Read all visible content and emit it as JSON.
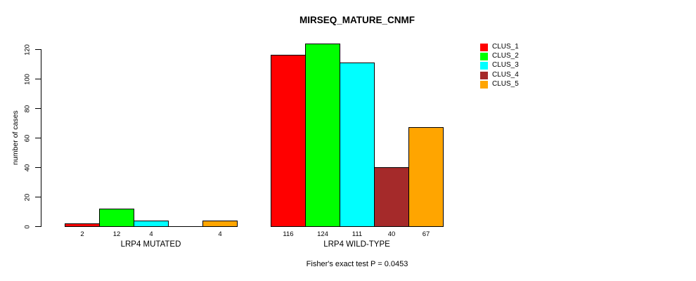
{
  "title": "MIRSEQ_MATURE_CNMF",
  "footer": "Fisher's exact test P = 0.0453",
  "y_axis": {
    "label": "number of cases",
    "ticks": [
      "0",
      "20",
      "40",
      "60",
      "80",
      "100",
      "120"
    ]
  },
  "legend": {
    "items": [
      {
        "label": "CLUS_1",
        "color": "#ff0000"
      },
      {
        "label": "CLUS_2",
        "color": "#00ff00"
      },
      {
        "label": "CLUS_3",
        "color": "#00ffff"
      },
      {
        "label": "CLUS_4",
        "color": "#a52a2a"
      },
      {
        "label": "CLUS_5",
        "color": "#ffa500"
      }
    ]
  },
  "chart_data": {
    "type": "bar",
    "title": "MIRSEQ_MATURE_CNMF",
    "xlabel": "",
    "ylabel": "number of cases",
    "ylim": [
      0,
      120
    ],
    "yticks": [
      0,
      20,
      40,
      60,
      80,
      100,
      120
    ],
    "categories": [
      "LRP4 MUTATED",
      "LRP4 WILD-TYPE"
    ],
    "series": [
      {
        "name": "CLUS_1",
        "color": "#ff0000",
        "values": [
          2,
          116
        ]
      },
      {
        "name": "CLUS_2",
        "color": "#00ff00",
        "values": [
          12,
          124
        ]
      },
      {
        "name": "CLUS_3",
        "color": "#00ffff",
        "values": [
          4,
          111
        ]
      },
      {
        "name": "CLUS_4",
        "color": "#a52a2a",
        "values": [
          0,
          40
        ]
      },
      {
        "name": "CLUS_5",
        "color": "#ffa500",
        "values": [
          4,
          67
        ]
      }
    ],
    "bar_value_labels": [
      [
        "2",
        "12",
        "4",
        "",
        "4"
      ],
      [
        "116",
        "124",
        "111",
        "40",
        "67"
      ]
    ],
    "annotation": "Fisher's exact test P = 0.0453",
    "legend_position": "top-right",
    "grid": false
  }
}
